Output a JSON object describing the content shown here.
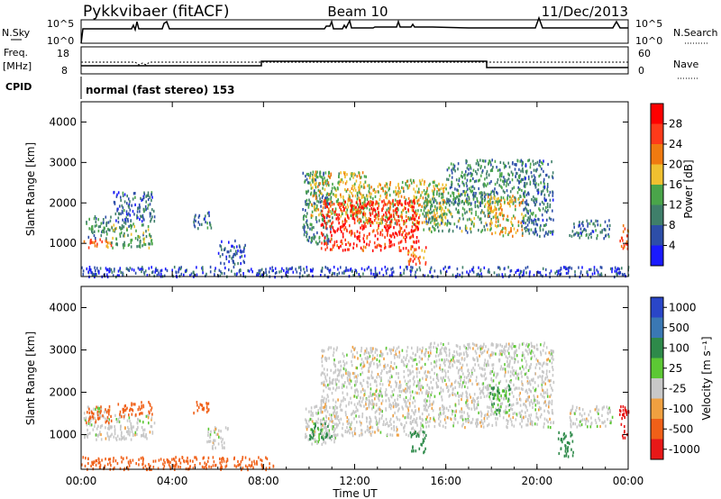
{
  "header": {
    "station": "Pykkvibaer (fitACF)",
    "beam": "Beam 10",
    "date": "11/Dec/2013"
  },
  "panels": {
    "nsky": {
      "left_label": "N.Sky",
      "right_label": "N.Search",
      "left_ticks": [
        "10^5",
        "10^0"
      ],
      "right_ticks": [
        "10^5",
        "10^0"
      ]
    },
    "freq": {
      "left_label_1": "Freq.",
      "left_label_2": "[MHz]",
      "left_ticks": [
        "18",
        "8"
      ],
      "right_label": "Nave",
      "right_ticks": [
        "60",
        "0"
      ]
    },
    "cpid": {
      "label": "CPID",
      "mode": "normal (fast stereo) 153"
    }
  },
  "chart_data": [
    {
      "type": "heatmap",
      "panel": "power",
      "ylabel": "Slant Range [km]",
      "xlabel": "",
      "x_ticks": [
        "00:00",
        "04:00",
        "08:00",
        "12:00",
        "16:00",
        "20:00",
        "00:00"
      ],
      "y_ticks": [
        1000,
        2000,
        3000,
        4000
      ],
      "xlim_hours": [
        0,
        24
      ],
      "ylim_km": [
        180,
        4500
      ],
      "colorbar": {
        "label": "Power [dB]",
        "ticks": [
          "28",
          "24",
          "20",
          "16",
          "12",
          "8",
          "4"
        ],
        "range": [
          0,
          30
        ],
        "colors": [
          "#1a1aff",
          "#2d4ea8",
          "#3f7f6a",
          "#4aa54a",
          "#f0c030",
          "#f07a10",
          "#ff3a1a",
          "#ff0000"
        ]
      },
      "echo_regions": [
        {
          "t": [
            0.1,
            1.3
          ],
          "r": [
            900,
            1150
          ],
          "level": 22
        },
        {
          "t": [
            0.2,
            1.3
          ],
          "r": [
            1150,
            1700
          ],
          "level": 10
        },
        {
          "t": [
            1.3,
            3.1
          ],
          "r": [
            900,
            1500
          ],
          "level": 12
        },
        {
          "t": [
            1.4,
            3.2
          ],
          "r": [
            1500,
            2300
          ],
          "level": 7
        },
        {
          "t": [
            4.9,
            5.7
          ],
          "r": [
            1400,
            1800
          ],
          "level": 8
        },
        {
          "t": [
            6.0,
            7.2
          ],
          "r": [
            500,
            1100
          ],
          "level": 6
        },
        {
          "t": [
            9.7,
            11.0
          ],
          "r": [
            1000,
            2800
          ],
          "level": 10
        },
        {
          "t": [
            10.0,
            12.5
          ],
          "r": [
            1700,
            2800
          ],
          "level": 16
        },
        {
          "t": [
            12.0,
            16.0
          ],
          "r": [
            1500,
            2600
          ],
          "level": 16
        },
        {
          "t": [
            10.5,
            14.8
          ],
          "r": [
            850,
            2100
          ],
          "level": 26
        },
        {
          "t": [
            14.3,
            15.1
          ],
          "r": [
            500,
            1000
          ],
          "level": 22
        },
        {
          "t": [
            15.0,
            18.0
          ],
          "r": [
            1300,
            2300
          ],
          "level": 12
        },
        {
          "t": [
            16.0,
            19.5
          ],
          "r": [
            2000,
            3100
          ],
          "level": 10
        },
        {
          "t": [
            17.8,
            19.4
          ],
          "r": [
            1200,
            2200
          ],
          "level": 18
        },
        {
          "t": [
            19.3,
            20.7
          ],
          "r": [
            1200,
            3100
          ],
          "level": 8
        },
        {
          "t": [
            21.4,
            23.2
          ],
          "r": [
            1150,
            1600
          ],
          "level": 8
        },
        {
          "t": [
            23.6,
            24.0
          ],
          "r": [
            900,
            1500
          ],
          "level": 22
        },
        {
          "t": [
            0.0,
            24.0
          ],
          "r": [
            200,
            450
          ],
          "level": 5
        }
      ]
    },
    {
      "type": "heatmap",
      "panel": "velocity",
      "ylabel": "Slant Range [km]",
      "xlabel": "Time UT",
      "x_ticks": [
        "00:00",
        "04:00",
        "08:00",
        "12:00",
        "16:00",
        "20:00",
        "00:00"
      ],
      "y_ticks": [
        1000,
        2000,
        3000,
        4000
      ],
      "xlim_hours": [
        0,
        24
      ],
      "ylim_km": [
        180,
        4500
      ],
      "colorbar": {
        "label": "Velocity [m s⁻¹]",
        "ticks": [
          "1000",
          "500",
          "100",
          "25",
          "-25",
          "-100",
          "-500",
          "-1000"
        ],
        "colors": [
          "#2a46c8",
          "#3a78b4",
          "#2e8a4a",
          "#5cc834",
          "#c8c8c8",
          "#f0a040",
          "#f06018",
          "#e81818"
        ]
      },
      "echo_regions": [
        {
          "t": [
            0.1,
            1.3
          ],
          "r": [
            900,
            1700
          ],
          "vel": 0
        },
        {
          "t": [
            0.2,
            1.3
          ],
          "r": [
            1300,
            1700
          ],
          "vel": -300
        },
        {
          "t": [
            1.3,
            3.2
          ],
          "r": [
            900,
            1500
          ],
          "vel": 0
        },
        {
          "t": [
            1.6,
            3.1
          ],
          "r": [
            1450,
            1800
          ],
          "vel": -400
        },
        {
          "t": [
            4.9,
            5.7
          ],
          "r": [
            1500,
            1800
          ],
          "vel": -300
        },
        {
          "t": [
            5.5,
            6.5
          ],
          "r": [
            700,
            1200
          ],
          "vel": 0
        },
        {
          "t": [
            9.8,
            11.2
          ],
          "r": [
            800,
            1700
          ],
          "vel": 0
        },
        {
          "t": [
            9.9,
            11.0
          ],
          "r": [
            900,
            1300
          ],
          "vel": 80
        },
        {
          "t": [
            10.5,
            15.0
          ],
          "r": [
            1000,
            3100
          ],
          "vel": 0
        },
        {
          "t": [
            14.4,
            15.1
          ],
          "r": [
            600,
            1100
          ],
          "vel": 150
        },
        {
          "t": [
            15.0,
            20.7
          ],
          "r": [
            1200,
            3200
          ],
          "vel": 0
        },
        {
          "t": [
            17.9,
            18.8
          ],
          "r": [
            1500,
            2200
          ],
          "vel": 60
        },
        {
          "t": [
            20.9,
            21.6
          ],
          "r": [
            500,
            1100
          ],
          "vel": 200
        },
        {
          "t": [
            21.4,
            23.3
          ],
          "r": [
            1200,
            1700
          ],
          "vel": 0
        },
        {
          "t": [
            23.6,
            24.0
          ],
          "r": [
            900,
            1700
          ],
          "vel": -700
        },
        {
          "t": [
            0.0,
            8.5
          ],
          "r": [
            200,
            500
          ],
          "vel": -150
        }
      ]
    }
  ]
}
